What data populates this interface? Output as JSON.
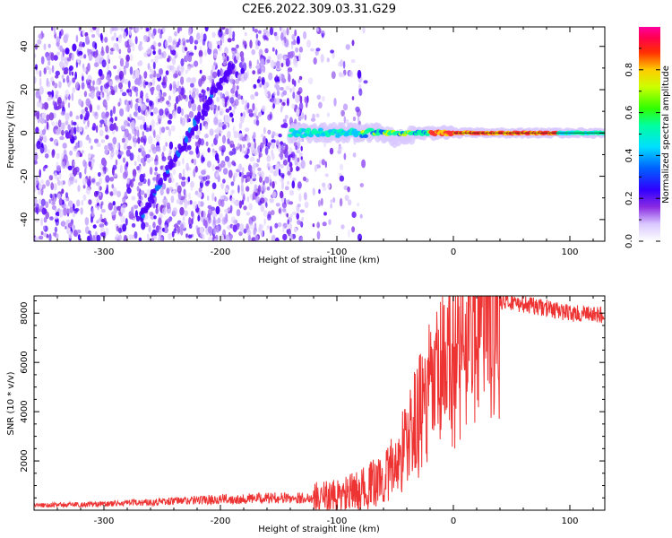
{
  "title": "C2E6.2022.309.03.31.G29",
  "chart_data": [
    {
      "type": "heatmap",
      "xlabel": "Height of straight line (km)",
      "ylabel": "Frequency (Hz)",
      "xlim": [
        -360,
        130
      ],
      "ylim": [
        -50,
        49
      ],
      "xticks": [
        -300,
        -200,
        -100,
        0,
        100
      ],
      "yticks": [
        -40,
        -20,
        0,
        20,
        40
      ],
      "grid": false,
      "colorbar": {
        "label": "Normalized spectral amplitude",
        "range": [
          0,
          1
        ],
        "ticks": [
          0.0,
          0.2,
          0.4,
          0.6,
          0.8
        ]
      },
      "features": [
        {
          "description": "diffuse noise region",
          "x_range": [
            -360,
            -100
          ],
          "y_range": [
            -50,
            49
          ]
        },
        {
          "description": "diagonal streak",
          "from": [
            -270,
            -40
          ],
          "to": [
            -190,
            32
          ]
        },
        {
          "description": "central tone",
          "x_range": [
            -140,
            130
          ],
          "y": 0
        }
      ]
    },
    {
      "type": "line",
      "xlabel": "Height of straight line (km)",
      "ylabel": "SNR (10 * v/v)",
      "xlim": [
        -360,
        130
      ],
      "ylim": [
        0,
        8700
      ],
      "xticks": [
        -300,
        -200,
        -100,
        0,
        100
      ],
      "yticks": [
        2000,
        4000,
        6000,
        8000
      ],
      "color": "#ee3333",
      "grid": false,
      "series": [
        {
          "x": [
            -360,
            -300,
            -250,
            -200,
            -150,
            -120,
            -100,
            -80,
            -60,
            -50,
            -40,
            -30,
            -20,
            -10,
            0,
            10,
            20,
            30,
            40,
            50,
            60,
            80,
            100,
            130
          ],
          "y": [
            200,
            250,
            350,
            450,
            500,
            500,
            550,
            800,
            1300,
            1800,
            2800,
            3800,
            4700,
            5400,
            6000,
            7000,
            7700,
            8200,
            8500,
            8450,
            8350,
            8200,
            8000,
            7900
          ]
        }
      ]
    }
  ]
}
